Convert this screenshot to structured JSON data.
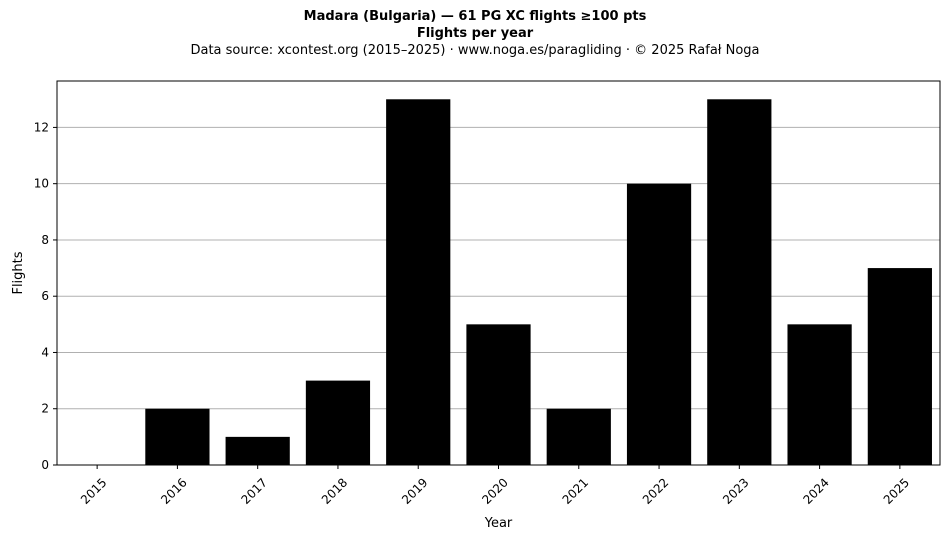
{
  "chart_data": {
    "type": "bar",
    "title": "Madara (Bulgaria)  —  61 PG XC flights ≥100 pts",
    "subtitle": "Flights per year",
    "source": "Data source: xcontest.org (2015–2025)  ·  www.noga.es/paragliding  ·  © 2025 Rafał Noga",
    "xlabel": "Year",
    "ylabel": "Flights",
    "categories": [
      "2015",
      "2016",
      "2017",
      "2018",
      "2019",
      "2020",
      "2021",
      "2022",
      "2023",
      "2024",
      "2025"
    ],
    "values": [
      0,
      2,
      1,
      3,
      13,
      5,
      2,
      10,
      13,
      5,
      7
    ],
    "ylim": [
      0,
      13.65
    ],
    "yticks": [
      0,
      2,
      4,
      6,
      8,
      10,
      12
    ],
    "grid": "y",
    "bar_color": "#000000",
    "grid_color": "#b0b0b0"
  }
}
